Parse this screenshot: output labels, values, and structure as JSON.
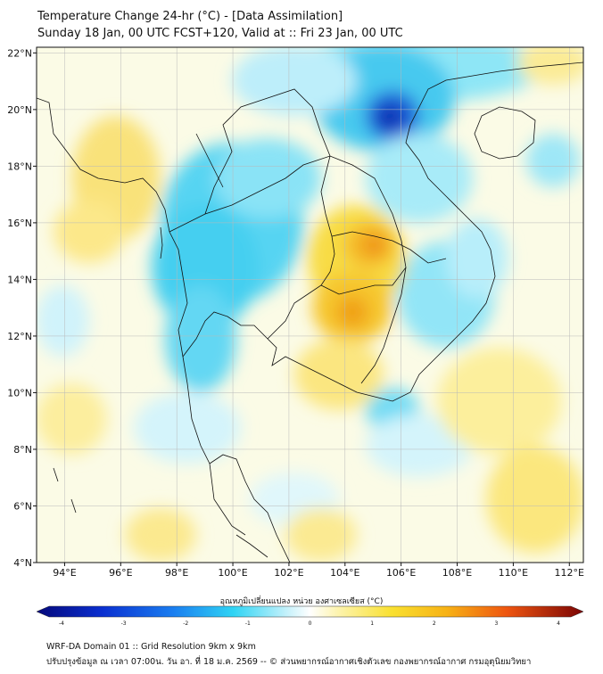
{
  "header": {
    "title_line1": "Temperature Change 24-hr (°C) - [Data Assimilation]",
    "title_line2": "Sunday 18 Jan, 00 UTC FCST+120, Valid at :: Fri 23 Jan, 00 UTC"
  },
  "map": {
    "lon_range": [
      93,
      112.5
    ],
    "lat_range": [
      4,
      22.2
    ],
    "lat_ticks": [
      "4°N",
      "6°N",
      "8°N",
      "10°N",
      "12°N",
      "14°N",
      "16°N",
      "18°N",
      "20°N",
      "22°N"
    ],
    "lon_ticks": [
      "94°E",
      "96°E",
      "98°E",
      "100°E",
      "102°E",
      "104°E",
      "106°E",
      "108°E",
      "110°E",
      "112°E"
    ],
    "colors": {
      "ocean_bg": "#fbfbea",
      "cold_strong": "#0a2fb0",
      "cold": "#2fd0f0",
      "cold_light": "#c8f2fb",
      "warm_light": "#fdf1a0",
      "warm": "#f7d21a",
      "hot": "#f08a10"
    }
  },
  "colorbar": {
    "label": "อุณหภูมิเปลี่ยนแปลง หน่วย องศาเซลเซียส (°C)",
    "ticks": [
      "-4",
      "-3",
      "-2",
      "-1",
      "0",
      "1",
      "2",
      "3",
      "4"
    ],
    "range": [
      -4,
      4
    ]
  },
  "footer": {
    "line1": "WRF-DA Domain 01 :: Grid Resolution 9km x 9km",
    "line2": "ปรับปรุงข้อมูล ณ เวลา 07:00น. วัน อา. ที่ 18 ม.ค. 2569 -- © ส่วนพยากรณ์อากาศเชิงตัวเลข กองพยากรณ์อากาศ กรมอุตุนิยมวิทยา"
  }
}
